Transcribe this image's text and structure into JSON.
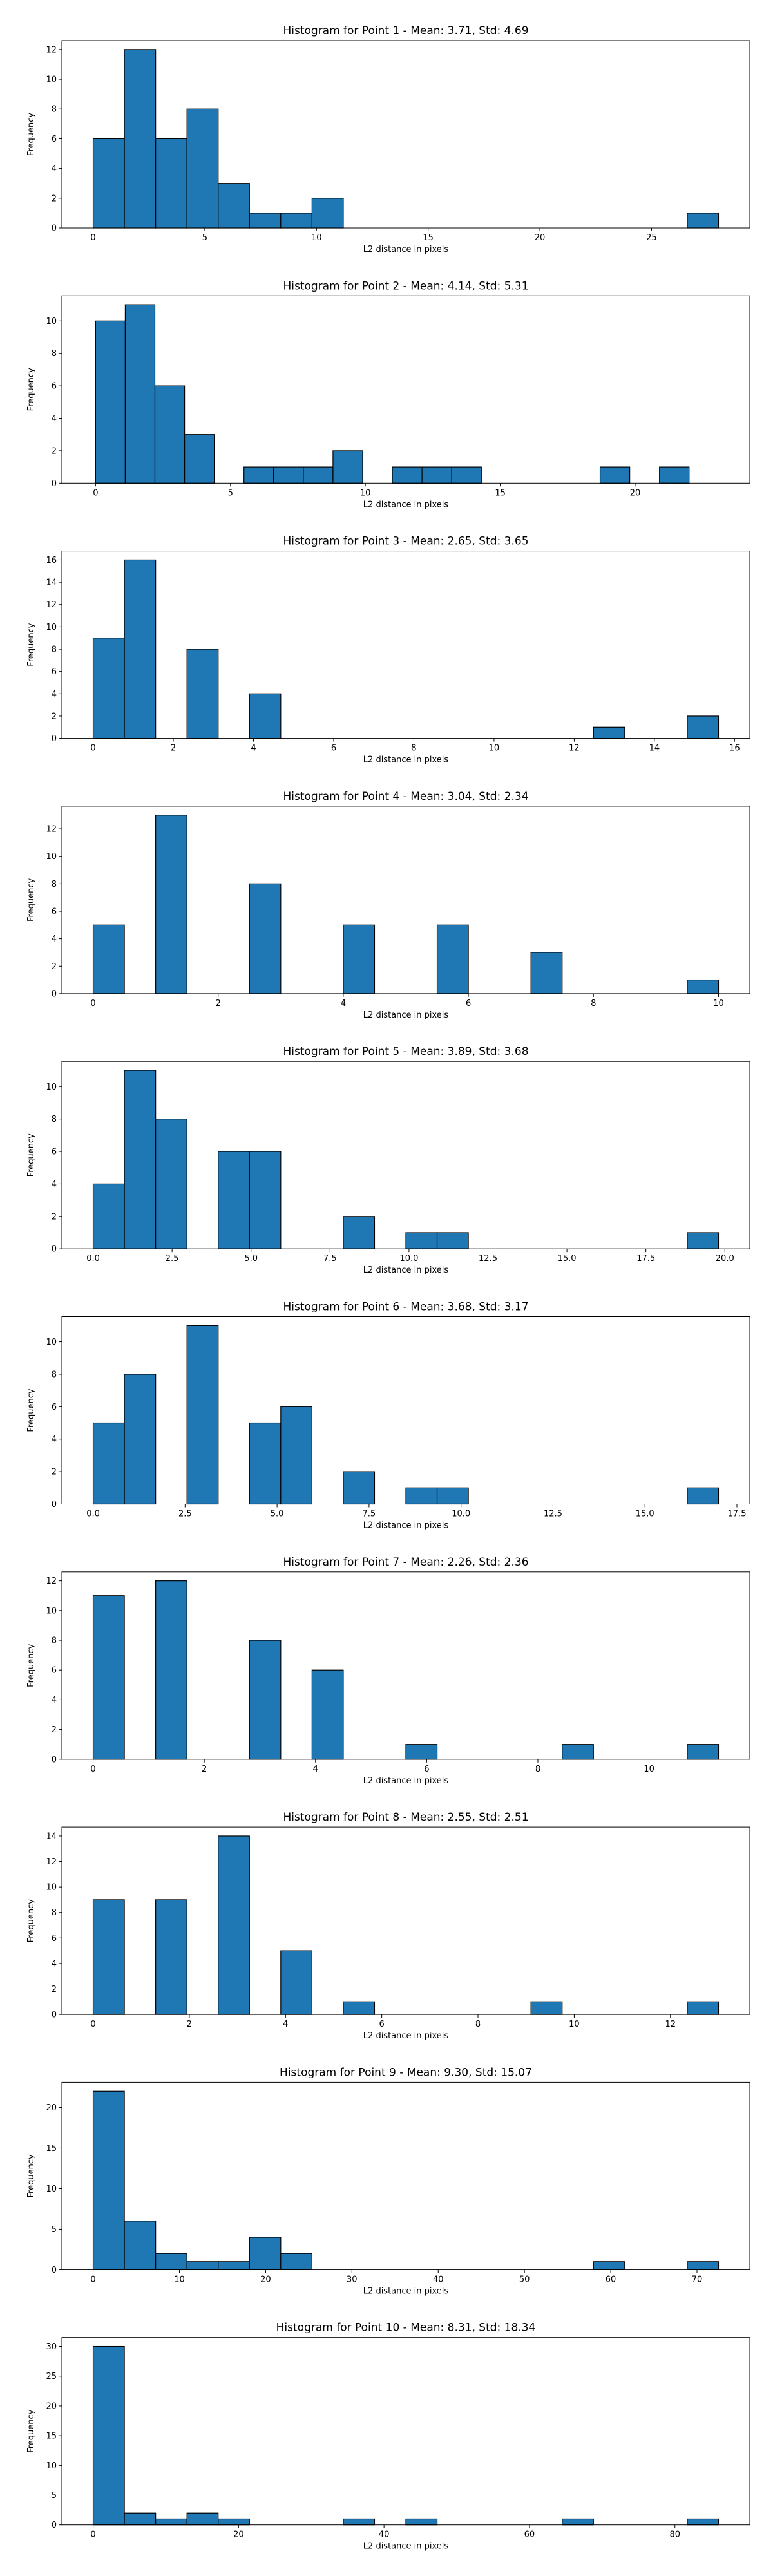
{
  "chart_data": [
    {
      "type": "bar",
      "title": "Histogram for Point 1 - Mean: 3.71, Std: 4.69",
      "xlabel": "L2 distance in pixels",
      "ylabel": "Frequency",
      "xlim": [
        -1.4,
        29.4
      ],
      "ylim": [
        0,
        12.6
      ],
      "xticks": [
        0,
        5,
        10,
        15,
        20,
        25
      ],
      "xtick_labels": [
        "0",
        "5",
        "10",
        "15",
        "20",
        "25"
      ],
      "yticks": [
        0,
        2,
        4,
        6,
        8,
        10,
        12
      ],
      "ytick_labels": [
        "0",
        "2",
        "4",
        "6",
        "8",
        "10",
        "12"
      ],
      "bins": [
        [
          0.0,
          1.4
        ],
        [
          1.4,
          2.8
        ],
        [
          2.8,
          4.2
        ],
        [
          4.2,
          5.6
        ],
        [
          5.6,
          7.0
        ],
        [
          7.0,
          8.4
        ],
        [
          8.4,
          9.8
        ],
        [
          9.8,
          11.2
        ],
        [
          26.6,
          28.0
        ]
      ],
      "values": [
        6,
        12,
        6,
        8,
        3,
        1,
        1,
        2,
        1
      ]
    },
    {
      "type": "bar",
      "title": "Histogram for Point 2 - Mean: 4.14, Std: 5.31",
      "xlabel": "L2 distance in pixels",
      "ylabel": "Frequency",
      "xlim": [
        -1.25,
        24.25
      ],
      "ylim": [
        0,
        11.55
      ],
      "xticks": [
        0,
        5,
        10,
        15,
        20
      ],
      "xtick_labels": [
        "0",
        "5",
        "10",
        "15",
        "20"
      ],
      "yticks": [
        0,
        2,
        4,
        6,
        8,
        10
      ],
      "ytick_labels": [
        "0",
        "2",
        "4",
        "6",
        "8",
        "10"
      ],
      "bins": [
        [
          0.0,
          1.1
        ],
        [
          1.1,
          2.2
        ],
        [
          2.2,
          3.3
        ],
        [
          3.3,
          4.4
        ],
        [
          5.5,
          6.6
        ],
        [
          6.6,
          7.7
        ],
        [
          7.7,
          8.8
        ],
        [
          8.8,
          9.9
        ],
        [
          11.0,
          12.1
        ],
        [
          12.1,
          13.2
        ],
        [
          13.2,
          14.3
        ],
        [
          18.7,
          19.8
        ],
        [
          20.9,
          22.0
        ]
      ],
      "values": [
        10,
        11,
        6,
        3,
        1,
        1,
        1,
        2,
        1,
        1,
        1,
        1,
        1
      ]
    },
    {
      "type": "bar",
      "title": "Histogram for Point 3 - Mean: 2.65, Std: 3.65",
      "xlabel": "L2 distance in pixels",
      "ylabel": "Frequency",
      "xlim": [
        -0.78,
        16.38
      ],
      "ylim": [
        0,
        16.8
      ],
      "xticks": [
        0,
        2,
        4,
        6,
        8,
        10,
        12,
        14,
        16
      ],
      "xtick_labels": [
        "0",
        "2",
        "4",
        "6",
        "8",
        "10",
        "12",
        "14",
        "16"
      ],
      "yticks": [
        0,
        2,
        4,
        6,
        8,
        10,
        12,
        14,
        16
      ],
      "ytick_labels": [
        "0",
        "2",
        "4",
        "6",
        "8",
        "10",
        "12",
        "14",
        "16"
      ],
      "bins": [
        [
          0.0,
          0.78
        ],
        [
          0.78,
          1.56
        ],
        [
          2.34,
          3.12
        ],
        [
          3.9,
          4.68
        ],
        [
          12.48,
          13.26
        ],
        [
          14.82,
          15.6
        ]
      ],
      "values": [
        9,
        16,
        8,
        4,
        1,
        2
      ]
    },
    {
      "type": "bar",
      "title": "Histogram for Point 4 - Mean: 3.04, Std: 2.34",
      "xlabel": "L2 distance in pixels",
      "ylabel": "Frequency",
      "xlim": [
        -0.5,
        10.5
      ],
      "ylim": [
        0,
        13.65
      ],
      "xticks": [
        0,
        2,
        4,
        6,
        8,
        10
      ],
      "xtick_labels": [
        "0",
        "2",
        "4",
        "6",
        "8",
        "10"
      ],
      "yticks": [
        0,
        2,
        4,
        6,
        8,
        10,
        12
      ],
      "ytick_labels": [
        "0",
        "2",
        "4",
        "6",
        "8",
        "10",
        "12"
      ],
      "bins": [
        [
          0.0,
          0.5
        ],
        [
          1.0,
          1.5
        ],
        [
          2.5,
          3.0
        ],
        [
          4.0,
          4.5
        ],
        [
          5.5,
          6.0
        ],
        [
          7.0,
          7.5
        ],
        [
          9.5,
          10.0
        ]
      ],
      "values": [
        5,
        13,
        8,
        5,
        5,
        3,
        1
      ]
    },
    {
      "type": "bar",
      "title": "Histogram for Point 5 - Mean: 3.89, Std: 3.68",
      "xlabel": "L2 distance in pixels",
      "ylabel": "Frequency",
      "xlim": [
        -0.99,
        20.79
      ],
      "ylim": [
        0,
        11.55
      ],
      "xticks": [
        0.0,
        2.5,
        5.0,
        7.5,
        10.0,
        12.5,
        15.0,
        17.5,
        20.0
      ],
      "xtick_labels": [
        "0.0",
        "2.5",
        "5.0",
        "7.5",
        "10.0",
        "12.5",
        "15.0",
        "17.5",
        "20.0"
      ],
      "yticks": [
        0,
        2,
        4,
        6,
        8,
        10
      ],
      "ytick_labels": [
        "0",
        "2",
        "4",
        "6",
        "8",
        "10"
      ],
      "bins": [
        [
          0.0,
          0.99
        ],
        [
          0.99,
          1.98
        ],
        [
          1.98,
          2.97
        ],
        [
          3.96,
          4.95
        ],
        [
          4.95,
          5.94
        ],
        [
          7.92,
          8.91
        ],
        [
          9.9,
          10.89
        ],
        [
          10.89,
          11.88
        ],
        [
          18.81,
          19.8
        ]
      ],
      "values": [
        4,
        11,
        8,
        6,
        6,
        2,
        1,
        1,
        1
      ]
    },
    {
      "type": "bar",
      "title": "Histogram for Point 6 - Mean: 3.68, Std: 3.17",
      "xlabel": "L2 distance in pixels",
      "ylabel": "Frequency",
      "xlim": [
        -0.85,
        17.85
      ],
      "ylim": [
        0,
        11.55
      ],
      "xticks": [
        0.0,
        2.5,
        5.0,
        7.5,
        10.0,
        12.5,
        15.0,
        17.5
      ],
      "xtick_labels": [
        "0.0",
        "2.5",
        "5.0",
        "7.5",
        "10.0",
        "12.5",
        "15.0",
        "17.5"
      ],
      "yticks": [
        0,
        2,
        4,
        6,
        8,
        10
      ],
      "ytick_labels": [
        "0",
        "2",
        "4",
        "6",
        "8",
        "10"
      ],
      "bins": [
        [
          0.0,
          0.85
        ],
        [
          0.85,
          1.7
        ],
        [
          2.55,
          3.4
        ],
        [
          4.25,
          5.1
        ],
        [
          5.1,
          5.95
        ],
        [
          6.8,
          7.65
        ],
        [
          8.5,
          9.35
        ],
        [
          9.35,
          10.2
        ],
        [
          16.15,
          17.0
        ]
      ],
      "values": [
        5,
        8,
        11,
        5,
        6,
        2,
        1,
        1,
        1
      ]
    },
    {
      "type": "bar",
      "title": "Histogram for Point 7 - Mean: 2.26, Std: 2.36",
      "xlabel": "L2 distance in pixels",
      "ylabel": "Frequency",
      "xlim": [
        -0.5625,
        11.8125
      ],
      "ylim": [
        0,
        12.6
      ],
      "xticks": [
        0,
        2,
        4,
        6,
        8,
        10
      ],
      "xtick_labels": [
        "0",
        "2",
        "4",
        "6",
        "8",
        "10"
      ],
      "yticks": [
        0,
        2,
        4,
        6,
        8,
        10,
        12
      ],
      "ytick_labels": [
        "0",
        "2",
        "4",
        "6",
        "8",
        "10",
        "12"
      ],
      "bins": [
        [
          0.0,
          0.5625
        ],
        [
          1.125,
          1.6875
        ],
        [
          2.8125,
          3.375
        ],
        [
          3.9375,
          4.5
        ],
        [
          5.625,
          6.1875
        ],
        [
          8.4375,
          9.0
        ],
        [
          10.6875,
          11.25
        ]
      ],
      "values": [
        11,
        12,
        8,
        6,
        1,
        1,
        1
      ]
    },
    {
      "type": "bar",
      "title": "Histogram for Point 8 - Mean: 2.55, Std: 2.51",
      "xlabel": "L2 distance in pixels",
      "ylabel": "Frequency",
      "xlim": [
        -0.65,
        13.65
      ],
      "ylim": [
        0,
        14.7
      ],
      "xticks": [
        0,
        2,
        4,
        6,
        8,
        10,
        12
      ],
      "xtick_labels": [
        "0",
        "2",
        "4",
        "6",
        "8",
        "10",
        "12"
      ],
      "yticks": [
        0,
        2,
        4,
        6,
        8,
        10,
        12,
        14
      ],
      "ytick_labels": [
        "0",
        "2",
        "4",
        "6",
        "8",
        "10",
        "12",
        "14"
      ],
      "bins": [
        [
          0.0,
          0.65
        ],
        [
          1.3,
          1.95
        ],
        [
          2.6,
          3.25
        ],
        [
          3.9,
          4.55
        ],
        [
          5.2,
          5.85
        ],
        [
          9.1,
          9.75
        ],
        [
          12.35,
          13.0
        ]
      ],
      "values": [
        9,
        9,
        14,
        5,
        1,
        1,
        1
      ]
    },
    {
      "type": "bar",
      "title": "Histogram for Point 9 - Mean: 9.30, Std: 15.07",
      "xlabel": "L2 distance in pixels",
      "ylabel": "Frequency",
      "xlim": [
        -3.625,
        76.125
      ],
      "ylim": [
        0,
        23.1
      ],
      "xticks": [
        0,
        10,
        20,
        30,
        40,
        50,
        60,
        70
      ],
      "xtick_labels": [
        "0",
        "10",
        "20",
        "30",
        "40",
        "50",
        "60",
        "70"
      ],
      "yticks": [
        0,
        5,
        10,
        15,
        20
      ],
      "ytick_labels": [
        "0",
        "5",
        "10",
        "15",
        "20"
      ],
      "bins": [
        [
          0.0,
          3.625
        ],
        [
          3.625,
          7.25
        ],
        [
          7.25,
          10.875
        ],
        [
          10.875,
          14.5
        ],
        [
          14.5,
          18.125
        ],
        [
          18.125,
          21.75
        ],
        [
          21.75,
          25.375
        ],
        [
          58.0,
          61.625
        ],
        [
          68.875,
          72.5
        ]
      ],
      "values": [
        22,
        6,
        2,
        1,
        1,
        4,
        2,
        1,
        1
      ]
    },
    {
      "type": "bar",
      "title": "Histogram for Point 10 - Mean: 8.31, Std: 18.34",
      "xlabel": "L2 distance in pixels",
      "ylabel": "Frequency",
      "xlim": [
        -4.3,
        90.3
      ],
      "ylim": [
        0,
        31.5
      ],
      "xticks": [
        0,
        20,
        40,
        60,
        80
      ],
      "xtick_labels": [
        "0",
        "20",
        "40",
        "60",
        "80"
      ],
      "yticks": [
        0,
        5,
        10,
        15,
        20,
        25,
        30
      ],
      "ytick_labels": [
        "0",
        "5",
        "10",
        "15",
        "20",
        "25",
        "30"
      ],
      "bins": [
        [
          0.0,
          4.3
        ],
        [
          4.3,
          8.6
        ],
        [
          8.6,
          12.9
        ],
        [
          12.9,
          17.2
        ],
        [
          17.2,
          21.5
        ],
        [
          34.4,
          38.7
        ],
        [
          43.0,
          47.3
        ],
        [
          64.5,
          68.8
        ],
        [
          81.7,
          86.0
        ]
      ],
      "values": [
        30,
        2,
        1,
        2,
        1,
        1,
        1,
        1,
        1
      ]
    }
  ]
}
